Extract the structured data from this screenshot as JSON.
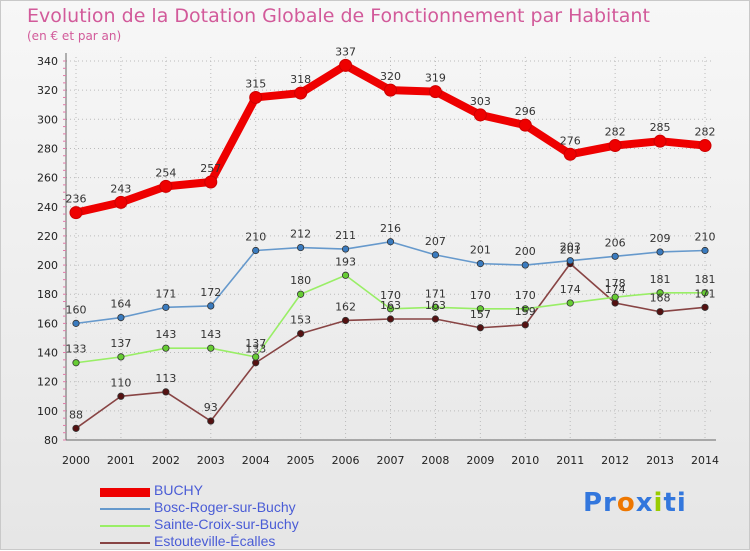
{
  "chart_data": {
    "type": "line",
    "title": "Evolution de la Dotation Globale de Fonctionnement par Habitant",
    "subtitle": "(en € et par an)",
    "x": [
      "2000",
      "2001",
      "2002",
      "2003",
      "2004",
      "2005",
      "2006",
      "2007",
      "2008",
      "2009",
      "2010",
      "2011",
      "2012",
      "2013",
      "2014"
    ],
    "ylim": [
      80,
      340
    ],
    "yticks": [
      80,
      100,
      120,
      140,
      160,
      180,
      200,
      220,
      240,
      260,
      280,
      300,
      320,
      340
    ],
    "grid": true,
    "legend_position": "bottom-left",
    "series": [
      {
        "name": "BUCHY",
        "color": "#ee0000",
        "marker": "#cc0000",
        "values": [
          236,
          243,
          254,
          257,
          315,
          318,
          337,
          320,
          319,
          303,
          296,
          276,
          282,
          285,
          282
        ],
        "labels": [
          "236",
          "243",
          "254",
          "257",
          "315",
          "318",
          "337",
          "320",
          "319",
          "303",
          "296",
          "276",
          "282",
          "285",
          "282"
        ]
      },
      {
        "name": "Bosc-Roger-sur-Buchy",
        "color": "#6699cc",
        "marker": "#3a7bbf",
        "values": [
          160,
          164,
          171,
          172,
          210,
          212,
          211,
          216,
          207,
          201,
          200,
          203,
          206,
          209,
          210
        ],
        "labels": [
          "160",
          "164",
          "171",
          "172",
          "210",
          "212",
          "211",
          "216",
          "207",
          "201",
          "200",
          "203",
          "206",
          "209",
          "210"
        ]
      },
      {
        "name": "Sainte-Croix-sur-Buchy",
        "color": "#99ee66",
        "marker": "#66cc33",
        "values": [
          133,
          137,
          143,
          143,
          137,
          180,
          193,
          170,
          171,
          170,
          170,
          174,
          178,
          181,
          181
        ],
        "labels": [
          "133",
          "137",
          "143",
          "143",
          "137",
          "180",
          "193",
          "170",
          "171",
          "170",
          "170",
          "174",
          "178",
          "181",
          "181"
        ]
      },
      {
        "name": "Estouteville-Écalles",
        "color": "#884444",
        "marker": "#551111",
        "values": [
          88,
          110,
          113,
          93,
          133,
          153,
          162,
          163,
          163,
          157,
          159,
          201,
          174,
          168,
          171
        ],
        "labels": [
          "88",
          "110",
          "113",
          "93",
          "133",
          "153",
          "162",
          "163",
          "163",
          "157",
          "159",
          "201",
          "174",
          "168",
          "171"
        ]
      }
    ]
  },
  "logo": {
    "parts": [
      "Pr",
      "o",
      "x",
      "i",
      "ti"
    ],
    "colors": [
      "#3377dd",
      "#ee7700",
      "#3377dd",
      "#99cc00",
      "#3377dd"
    ]
  }
}
